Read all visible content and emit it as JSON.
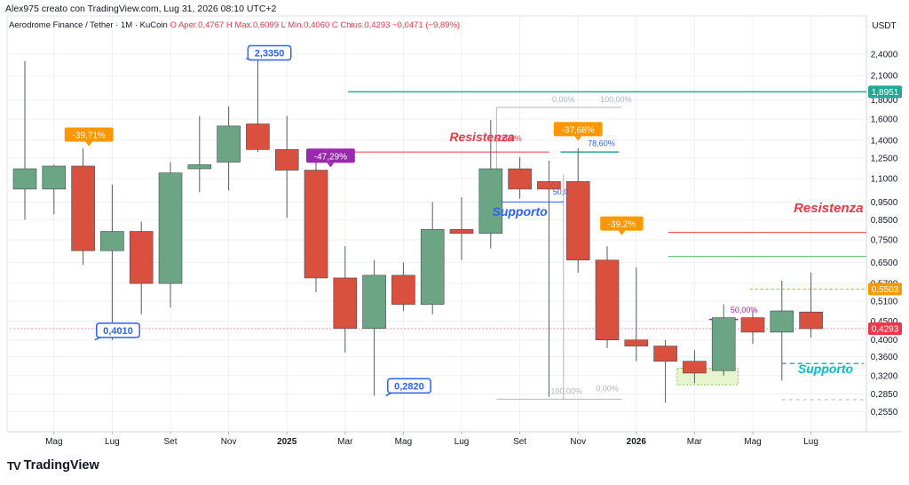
{
  "header": {
    "credit": "Alex975 creato con TradingView.com, Lug 31, 2026 08:10 UTC+2"
  },
  "legend": {
    "symbol": "Aerodrome Finance / Tether · 1M · KuCoin",
    "ohlc": [
      {
        "label": "O",
        "value": "Aper.0,4767",
        "color": "#f23645"
      },
      {
        "label": "H",
        "value": "Max.0,6099",
        "color": "#f23645"
      },
      {
        "label": "L",
        "value": "Min.0,4060",
        "color": "#f23645"
      },
      {
        "label": "C",
        "value": "Chius.0,4293",
        "color": "#f23645"
      },
      {
        "label": "chg",
        "value": "−0,0471 (−9,89%)",
        "color": "#f23645"
      }
    ]
  },
  "brand": {
    "name": "TradingView",
    "logo_text": "TV"
  },
  "colors": {
    "up": "#6ba583",
    "down": "#d9503f",
    "grid": "#eef0f3",
    "resistance_red": "#f23645",
    "teal": "#22ab94",
    "green": "#4caf50",
    "fib_gray": "#b2b5be",
    "fib_blue": "#2962ff",
    "orange": "#ff9800",
    "purple": "#9c27b0",
    "support_blue": "#2962ff",
    "support_cyan": "#00bcd4"
  },
  "chart_data": {
    "type": "candlestick",
    "title": "Aerodrome Finance / Tether · 1M · KuCoin",
    "ylabel": "USDT",
    "y_scale": "log",
    "ylim": [
      0.225,
      3.05
    ],
    "y_ticks": [
      "0,2550",
      "0,2850",
      "0,3200",
      "0,3600",
      "0,4000",
      "0,4500",
      "0,5100",
      "0,5700",
      "0,6500",
      "0,7500",
      "0,8500",
      "0,9500",
      "1,1000",
      "1,2500",
      "1,4000",
      "1,6000",
      "1,8000",
      "2,1000",
      "2,4000"
    ],
    "x_labels": [
      {
        "i": 1,
        "label": "Mag",
        "bold": false
      },
      {
        "i": 3,
        "label": "Lug",
        "bold": false
      },
      {
        "i": 5,
        "label": "Set",
        "bold": false
      },
      {
        "i": 7,
        "label": "Nov",
        "bold": false
      },
      {
        "i": 9,
        "label": "2025",
        "bold": true
      },
      {
        "i": 11,
        "label": "Mar",
        "bold": false
      },
      {
        "i": 13,
        "label": "Mag",
        "bold": false
      },
      {
        "i": 15,
        "label": "Lug",
        "bold": false
      },
      {
        "i": 17,
        "label": "Set",
        "bold": false
      },
      {
        "i": 19,
        "label": "Nov",
        "bold": false
      },
      {
        "i": 21,
        "label": "2026",
        "bold": true
      },
      {
        "i": 23,
        "label": "Mar",
        "bold": false
      },
      {
        "i": 25,
        "label": "Mag",
        "bold": false
      },
      {
        "i": 27,
        "label": "Lug",
        "bold": false
      }
    ],
    "candles": [
      {
        "o": 1.03,
        "h": 2.3,
        "l": 0.85,
        "c": 1.17
      },
      {
        "o": 1.03,
        "h": 1.2,
        "l": 0.88,
        "c": 1.19
      },
      {
        "o": 1.19,
        "h": 1.33,
        "l": 0.64,
        "c": 0.7
      },
      {
        "o": 0.7,
        "h": 1.06,
        "l": 0.4,
        "c": 0.79
      },
      {
        "o": 0.79,
        "h": 0.84,
        "l": 0.47,
        "c": 0.57
      },
      {
        "o": 0.57,
        "h": 1.22,
        "l": 0.49,
        "c": 1.14
      },
      {
        "o": 1.17,
        "h": 1.63,
        "l": 1.01,
        "c": 1.2
      },
      {
        "o": 1.22,
        "h": 1.73,
        "l": 1.02,
        "c": 1.53
      },
      {
        "o": 1.55,
        "h": 2.335,
        "l": 1.3,
        "c": 1.32
      },
      {
        "o": 1.32,
        "h": 1.63,
        "l": 0.86,
        "c": 1.16
      },
      {
        "o": 1.16,
        "h": 1.28,
        "l": 0.54,
        "c": 0.59
      },
      {
        "o": 0.59,
        "h": 0.72,
        "l": 0.37,
        "c": 0.43
      },
      {
        "o": 0.43,
        "h": 0.66,
        "l": 0.282,
        "c": 0.6
      },
      {
        "o": 0.6,
        "h": 0.65,
        "l": 0.48,
        "c": 0.5
      },
      {
        "o": 0.5,
        "h": 0.95,
        "l": 0.47,
        "c": 0.8
      },
      {
        "o": 0.8,
        "h": 0.98,
        "l": 0.66,
        "c": 0.78
      },
      {
        "o": 0.78,
        "h": 1.59,
        "l": 0.71,
        "c": 1.17
      },
      {
        "o": 1.17,
        "h": 1.26,
        "l": 0.97,
        "c": 1.03
      },
      {
        "o": 1.08,
        "h": 1.23,
        "l": 0.28,
        "c": 1.03
      },
      {
        "o": 1.08,
        "h": 1.33,
        "l": 0.61,
        "c": 0.66
      },
      {
        "o": 0.66,
        "h": 0.72,
        "l": 0.38,
        "c": 0.4
      },
      {
        "o": 0.4,
        "h": 0.63,
        "l": 0.35,
        "c": 0.385
      },
      {
        "o": 0.385,
        "h": 0.4,
        "l": 0.27,
        "c": 0.35
      },
      {
        "o": 0.35,
        "h": 0.375,
        "l": 0.305,
        "c": 0.325
      },
      {
        "o": 0.33,
        "h": 0.5,
        "l": 0.32,
        "c": 0.46
      },
      {
        "o": 0.46,
        "h": 0.48,
        "l": 0.39,
        "c": 0.42
      },
      {
        "o": 0.42,
        "h": 0.58,
        "l": 0.31,
        "c": 0.48
      },
      {
        "o": 0.4767,
        "h": 0.6099,
        "l": 0.406,
        "c": 0.4293
      }
    ],
    "hlines": [
      {
        "value": 1.8951,
        "from": 11.1,
        "to": 29.6,
        "color": "#22ab94",
        "width": 1.5,
        "axis_label": "1,8951",
        "axis_bg": "#22ab94"
      },
      {
        "value": 1.3,
        "from": 11.1,
        "to": 18.0,
        "color": "#f23645",
        "width": 1
      },
      {
        "value": 0.785,
        "from": 22.1,
        "to": 29.6,
        "color": "#f23645",
        "width": 1
      },
      {
        "value": 0.675,
        "from": 22.1,
        "to": 29.6,
        "color": "#4caf50",
        "width": 1
      },
      {
        "value": 0.95,
        "from": 16.2,
        "to": 18.5,
        "color": "#2962ff",
        "width": 1
      },
      {
        "value": 1.3,
        "from": 18.4,
        "to": 20.4,
        "color": "#26a69a",
        "width": 1.5
      },
      {
        "value": 0.5503,
        "from": 24.9,
        "to": 29.6,
        "color": "#ff9800",
        "width": 1,
        "dash": "3,3",
        "axis_label": "0,5503",
        "axis_bg": "#ff9800"
      },
      {
        "value": 0.4293,
        "from": -0.5,
        "to": 29.6,
        "color": "#f23645",
        "width": 1,
        "dash": "1,3",
        "axis_label": "0,4293",
        "axis_bg": "#f23645"
      },
      {
        "value": 0.345,
        "from": 26.0,
        "to": 28.8,
        "color": "#00bcd4",
        "width": 1.5,
        "dash": "5,4"
      },
      {
        "value": 0.275,
        "from": 26.0,
        "to": 28.8,
        "color": "#b2b5be",
        "width": 1,
        "dash": "4,4"
      },
      {
        "value": 0.455,
        "from": 23.5,
        "to": 24.5,
        "color": "#9c27b0",
        "width": 1.5
      }
    ],
    "fib": [
      {
        "from": 16.2,
        "to": 20.5,
        "top": 1.72,
        "bottom": 0.276,
        "vline_at": 18.5,
        "color": "#b2b5be"
      }
    ],
    "fib_labels": [
      {
        "text": "0,00%",
        "x": 18.5,
        "y": 1.775,
        "color": "#b2b5be"
      },
      {
        "text": "100,00%",
        "x": 20.3,
        "y": 1.775,
        "color": "#b2b5be"
      },
      {
        "text": "100,00%",
        "x": 18.6,
        "y": 0.285,
        "color": "#b2b5be"
      },
      {
        "text": "0,00%",
        "x": 20.0,
        "y": 0.29,
        "color": "#b2b5be"
      },
      {
        "text": "50,00%",
        "x": 16.6,
        "y": 1.39,
        "color": "#f23645"
      },
      {
        "text": "78,60%",
        "x": 19.8,
        "y": 1.35,
        "color": "#2962ff"
      },
      {
        "text": "50,0",
        "x": 18.4,
        "y": 0.995,
        "color": "#2962ff"
      },
      {
        "text": "50,00%",
        "x": 24.7,
        "y": 0.475,
        "color": "#9c27b0"
      }
    ],
    "zones": [
      {
        "from": 22.4,
        "to": 24.5,
        "top": 0.335,
        "bottom": 0.302,
        "fill": "#dff0c0",
        "stroke": "#8bc34a"
      }
    ],
    "callouts": [
      {
        "text": "2,3350",
        "x": 8.4,
        "y": 2.42,
        "style": "blue-box",
        "pointer_y": 2.335
      },
      {
        "text": "0,4010",
        "x": 3.2,
        "y": 0.425,
        "style": "blue-box",
        "pointer_y": 0.4
      },
      {
        "text": "0,2820",
        "x": 13.2,
        "y": 0.3,
        "style": "blue-box",
        "pointer_y": 0.282
      },
      {
        "text": "-39,71%",
        "x": 2.2,
        "y": 1.45,
        "style": "orange",
        "pointer_y": 1.33
      },
      {
        "text": "-47,29%",
        "x": 10.5,
        "y": 1.27,
        "style": "purple",
        "pointer_y": 1.16
      },
      {
        "text": "-37,68%",
        "x": 19.0,
        "y": 1.5,
        "style": "orange",
        "pointer_y": 1.36
      },
      {
        "text": "-39,2%",
        "x": 20.5,
        "y": 0.83,
        "style": "orange",
        "pointer_y": 0.73
      }
    ],
    "text_annotations": [
      {
        "text": "Resistenza",
        "x": 15.7,
        "y": 1.39,
        "color": "#f23645",
        "size": 14
      },
      {
        "text": "Resistenza",
        "x": 27.6,
        "y": 0.89,
        "color": "#f23645",
        "size": 15
      },
      {
        "text": "Supporto",
        "x": 17.0,
        "y": 0.87,
        "color": "#2962ff",
        "size": 14
      },
      {
        "text": "Supporto",
        "x": 27.5,
        "y": 0.325,
        "color": "#00bcd4",
        "size": 14
      }
    ]
  }
}
